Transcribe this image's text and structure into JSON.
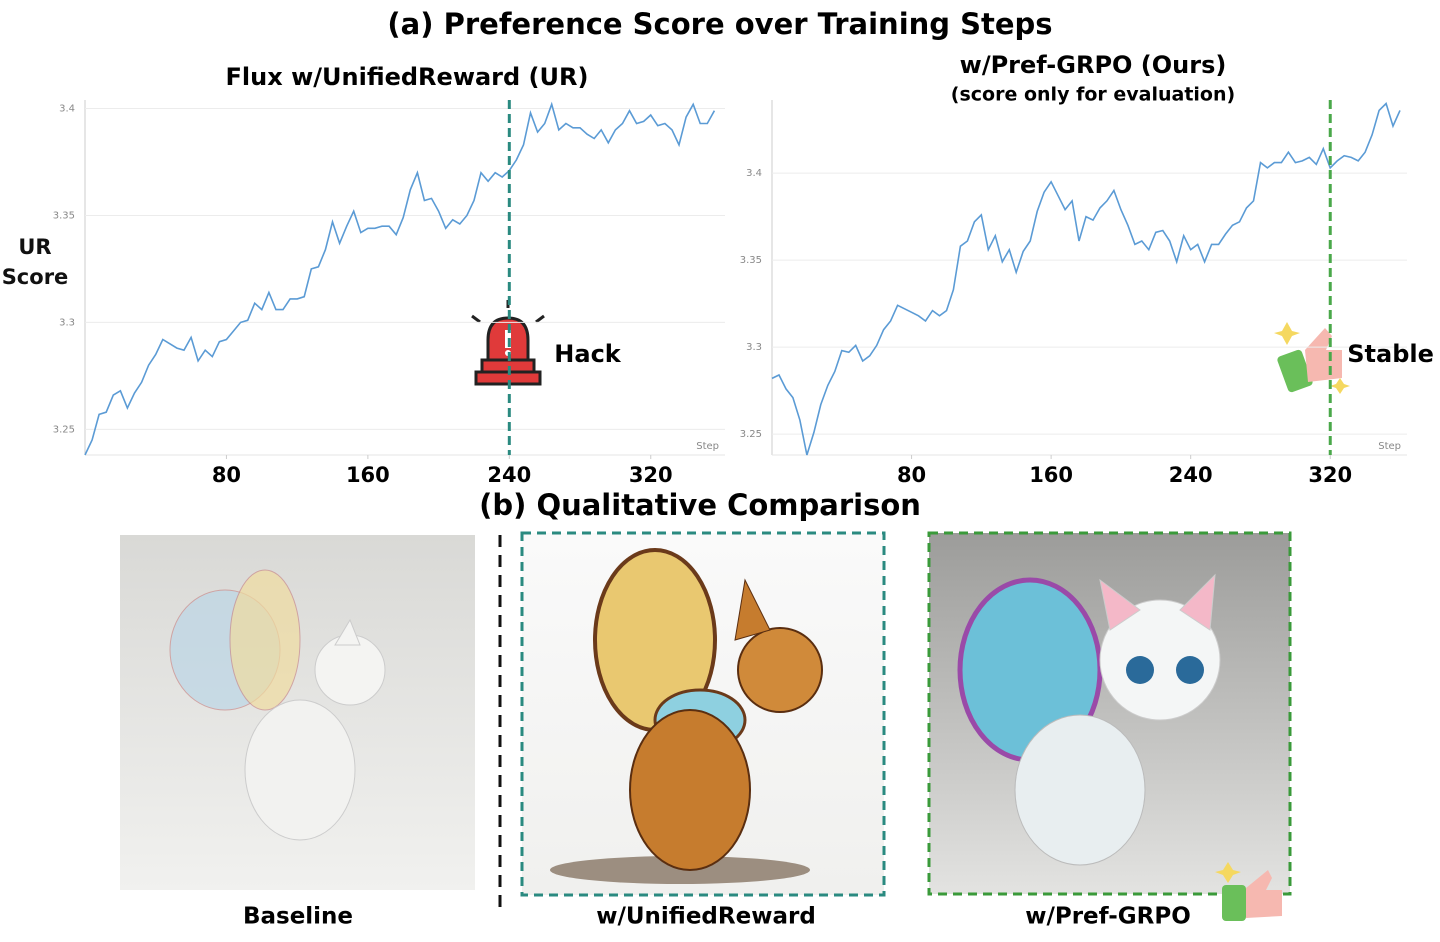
{
  "figure": {
    "title_a": "(a) Preference Score over Training Steps",
    "title_b": "(b) Qualitative Comparison",
    "captions": [
      "Baseline",
      "w/UnifiedReward",
      "w/Pref-GRPO"
    ]
  },
  "chart_data": [
    {
      "type": "line",
      "title": "Flux w/UnifiedReward (UR)",
      "y_label": "UR Score",
      "x_label": "Step",
      "color": "#5b9bd5",
      "grid": true,
      "x": [
        0,
        4,
        8,
        12,
        16,
        20,
        24,
        28,
        32,
        36,
        40,
        44,
        48,
        52,
        56,
        60,
        64,
        68,
        72,
        76,
        80,
        84,
        88,
        92,
        96,
        100,
        104,
        108,
        112,
        116,
        120,
        124,
        128,
        132,
        136,
        140,
        144,
        148,
        152,
        156,
        160,
        164,
        168,
        172,
        176,
        180,
        184,
        188,
        192,
        196,
        200,
        204,
        208,
        212,
        216,
        220,
        224,
        228,
        232,
        236,
        240,
        244,
        248,
        252,
        256,
        260,
        264,
        268,
        272,
        276,
        280,
        284,
        288,
        292,
        296,
        300,
        304,
        308,
        312,
        316,
        320,
        324,
        328,
        332,
        336,
        340,
        344,
        348,
        352,
        356
      ],
      "values": [
        3.238,
        3.245,
        3.257,
        3.258,
        3.266,
        3.268,
        3.26,
        3.267,
        3.272,
        3.28,
        3.285,
        3.292,
        3.29,
        3.288,
        3.287,
        3.293,
        3.282,
        3.287,
        3.284,
        3.291,
        3.292,
        3.296,
        3.3,
        3.301,
        3.309,
        3.306,
        3.314,
        3.306,
        3.306,
        3.311,
        3.311,
        3.312,
        3.325,
        3.326,
        3.334,
        3.347,
        3.337,
        3.345,
        3.352,
        3.342,
        3.344,
        3.344,
        3.345,
        3.345,
        3.341,
        3.349,
        3.362,
        3.37,
        3.357,
        3.358,
        3.352,
        3.344,
        3.348,
        3.346,
        3.35,
        3.357,
        3.37,
        3.366,
        3.37,
        3.368,
        3.371,
        3.376,
        3.383,
        3.398,
        3.389,
        3.393,
        3.402,
        3.39,
        3.393,
        3.391,
        3.391,
        3.388,
        3.386,
        3.39,
        3.384,
        3.39,
        3.393,
        3.399,
        3.393,
        3.394,
        3.397,
        3.392,
        3.393,
        3.39,
        3.383,
        3.396,
        3.402,
        3.393,
        3.393,
        3.399
      ],
      "xlim": [
        0,
        362
      ],
      "xticks": [
        80,
        160,
        240,
        320
      ],
      "ylim": [
        3.238,
        3.404
      ],
      "yticks": [
        3.25,
        3.3,
        3.35,
        3.4
      ],
      "marker": {
        "x": 240,
        "label": "Hack",
        "color": "#2a8a80"
      }
    },
    {
      "type": "line",
      "title": "w/Pref-GRPO (Ours)",
      "subtitle": "(score only for evaluation)",
      "x_label": "Step",
      "color": "#5b9bd5",
      "grid": true,
      "x": [
        0,
        4,
        8,
        12,
        16,
        20,
        24,
        28,
        32,
        36,
        40,
        44,
        48,
        52,
        56,
        60,
        64,
        68,
        72,
        76,
        80,
        84,
        88,
        92,
        96,
        100,
        104,
        108,
        112,
        116,
        120,
        124,
        128,
        132,
        136,
        140,
        144,
        148,
        152,
        156,
        160,
        164,
        168,
        172,
        176,
        180,
        184,
        188,
        192,
        196,
        200,
        204,
        208,
        212,
        216,
        220,
        224,
        228,
        232,
        236,
        240,
        244,
        248,
        252,
        256,
        260,
        264,
        268,
        272,
        276,
        280,
        284,
        288,
        292,
        296,
        300,
        304,
        308,
        312,
        316,
        320,
        324,
        328,
        332,
        336,
        340,
        344,
        348,
        352,
        356,
        360
      ],
      "values": [
        3.282,
        3.284,
        3.276,
        3.271,
        3.258,
        3.238,
        3.251,
        3.267,
        3.278,
        3.286,
        3.298,
        3.297,
        3.301,
        3.292,
        3.295,
        3.301,
        3.31,
        3.315,
        3.324,
        3.322,
        3.32,
        3.318,
        3.315,
        3.321,
        3.318,
        3.321,
        3.333,
        3.358,
        3.361,
        3.372,
        3.376,
        3.356,
        3.364,
        3.349,
        3.356,
        3.343,
        3.355,
        3.361,
        3.378,
        3.389,
        3.395,
        3.387,
        3.379,
        3.384,
        3.361,
        3.375,
        3.373,
        3.38,
        3.384,
        3.39,
        3.379,
        3.37,
        3.359,
        3.361,
        3.356,
        3.366,
        3.367,
        3.361,
        3.349,
        3.364,
        3.356,
        3.359,
        3.349,
        3.359,
        3.359,
        3.365,
        3.37,
        3.372,
        3.38,
        3.384,
        3.406,
        3.403,
        3.406,
        3.406,
        3.412,
        3.406,
        3.407,
        3.409,
        3.405,
        3.414,
        3.403,
        3.407,
        3.41,
        3.409,
        3.407,
        3.412,
        3.422,
        3.436,
        3.44,
        3.427,
        3.436
      ],
      "xlim": [
        0,
        364
      ],
      "xticks": [
        80,
        160,
        240,
        320
      ],
      "ylim": [
        3.238,
        3.442
      ],
      "yticks": [
        3.25,
        3.3,
        3.35,
        3.4
      ],
      "marker": {
        "x": 320,
        "label": "Stable",
        "color": "#4aa84a"
      }
    }
  ]
}
